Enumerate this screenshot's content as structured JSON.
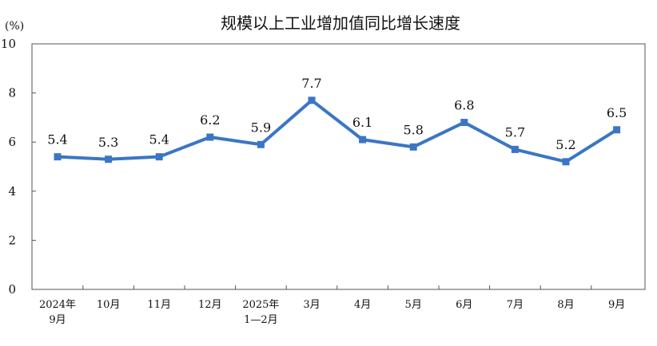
{
  "chart_data": {
    "type": "line",
    "title": "规模以上工业增加值同比增长速度",
    "ylabel": "(%)",
    "xlabel": "",
    "ylim": [
      0,
      10
    ],
    "yticks": [
      0,
      2,
      4,
      6,
      8,
      10
    ],
    "grid": false,
    "categories": [
      [
        "2024年",
        "9月"
      ],
      [
        "10月"
      ],
      [
        "11月"
      ],
      [
        "12月"
      ],
      [
        "2025年",
        "1—2月"
      ],
      [
        "3月"
      ],
      [
        "4月"
      ],
      [
        "5月"
      ],
      [
        "6月"
      ],
      [
        "7月"
      ],
      [
        "8月"
      ],
      [
        "9月"
      ]
    ],
    "series": [
      {
        "values": [
          5.4,
          5.3,
          5.4,
          6.2,
          5.9,
          7.7,
          6.1,
          5.8,
          6.8,
          5.7,
          5.2,
          6.5
        ],
        "color": "#3A76C4"
      }
    ],
    "data_labels": [
      "5.4",
      "5.3",
      "5.4",
      "6.2",
      "5.9",
      "7.7",
      "6.1",
      "5.8",
      "6.8",
      "5.7",
      "5.2",
      "6.5"
    ],
    "colors": {
      "line": "#3A76C4",
      "axis": "#555555"
    }
  }
}
